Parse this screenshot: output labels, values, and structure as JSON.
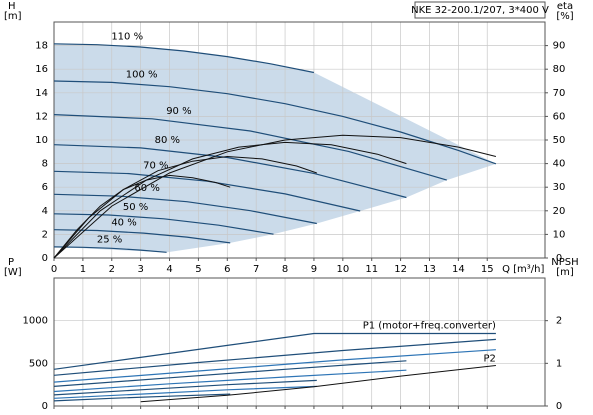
{
  "chart_data": [
    {
      "type": "line",
      "title": "NKE 32-200.1/207, 3*400 V",
      "ylabel": "H",
      "yunit": "[m]",
      "y2label": "eta",
      "y2unit": "[%]",
      "xlabel": "Q [m³/h]",
      "xlim": [
        0,
        17
      ],
      "xticks": [
        0,
        1,
        2,
        3,
        4,
        5,
        6,
        7,
        8,
        9,
        10,
        11,
        12,
        13,
        14,
        15
      ],
      "ylim": [
        0,
        20
      ],
      "yticks": [
        0,
        2,
        4,
        6,
        8,
        10,
        12,
        14,
        16,
        18
      ],
      "y2lim": [
        0,
        100
      ],
      "y2ticks": [
        0,
        10,
        20,
        30,
        40,
        50,
        60,
        70,
        80,
        90
      ],
      "grid": true,
      "fill_color": "#cbdbea",
      "series": [
        {
          "name": "110 %",
          "color": "#1f4e79",
          "x": [
            0,
            1.5,
            3,
            4.5,
            6,
            7.5,
            9
          ],
          "values": [
            18.15,
            18.08,
            17.88,
            17.54,
            17.07,
            16.46,
            15.72
          ]
        },
        {
          "name": "100 %",
          "color": "#1f4e79",
          "x": [
            0,
            2,
            4,
            6,
            8,
            10,
            12,
            14,
            15.3
          ],
          "values": [
            15,
            14.88,
            14.52,
            13.92,
            13.08,
            12,
            10.68,
            9.12,
            7.98
          ]
        },
        {
          "name": "90 %",
          "color": "#1f4e79",
          "x": [
            0,
            3.4,
            6.8,
            10.2,
            13.6
          ],
          "values": [
            12.15,
            11.8,
            10.76,
            9.03,
            6.6
          ]
        },
        {
          "name": "80 %",
          "color": "#1f4e79",
          "x": [
            0,
            3,
            6,
            9,
            12.2
          ],
          "values": [
            9.6,
            9.33,
            8.52,
            7.17,
            5.13
          ]
        },
        {
          "name": "70 %",
          "color": "#1f4e79",
          "x": [
            0,
            2.6,
            5.3,
            8,
            10.6
          ],
          "values": [
            7.35,
            7.15,
            6.51,
            5.43,
            3.98
          ]
        },
        {
          "name": "60 %",
          "color": "#1f4e79",
          "x": [
            0,
            2.3,
            4.6,
            6.8,
            9.1
          ],
          "values": [
            5.4,
            5.24,
            4.77,
            4.01,
            2.92
          ]
        },
        {
          "name": "50 %",
          "color": "#1f4e79",
          "x": [
            0,
            1.9,
            3.8,
            5.7,
            7.6
          ],
          "values": [
            3.75,
            3.64,
            3.32,
            2.78,
            2.02
          ]
        },
        {
          "name": "40 %",
          "color": "#1f4e79",
          "x": [
            0,
            1.5,
            3.1,
            4.6,
            6.1
          ],
          "values": [
            2.4,
            2.33,
            2.11,
            1.77,
            1.28
          ]
        },
        {
          "name": "25 %",
          "color": "#1f4e79",
          "x": [
            0,
            1,
            2,
            3,
            3.9
          ],
          "values": [
            0.94,
            0.91,
            0.82,
            0.67,
            0.48
          ]
        },
        {
          "axis": "y2",
          "color": "#111111",
          "x": [
            0,
            2,
            4,
            6,
            8,
            10,
            12,
            14,
            15.3
          ],
          "values": [
            0,
            22,
            36,
            45,
            50,
            52,
            51,
            47,
            43
          ]
        },
        {
          "axis": "y2",
          "color": "#111111",
          "x": [
            0,
            1.6,
            3.2,
            4.8,
            6.4,
            8,
            9.6,
            11.2,
            12.2
          ],
          "values": [
            0,
            20,
            33,
            42,
            47,
            49,
            48,
            44,
            40
          ]
        },
        {
          "axis": "y2",
          "color": "#111111",
          "x": [
            0,
            1.2,
            2.4,
            3.6,
            4.8,
            6,
            7.2,
            8.4,
            9.1
          ],
          "values": [
            0,
            17,
            29,
            37,
            41,
            43,
            42,
            39,
            36
          ]
        },
        {
          "axis": "y2",
          "color": "#111111",
          "x": [
            0,
            0.8,
            1.6,
            2.4,
            3.2,
            4,
            4.8,
            5.6,
            6.1
          ],
          "values": [
            0,
            12,
            22,
            29,
            33,
            35,
            34,
            32,
            30
          ]
        }
      ]
    },
    {
      "type": "line",
      "ylabel": "P",
      "yunit": "[W]",
      "y2label": "NPSH",
      "y2unit": "[m]",
      "xlim": [
        0,
        17
      ],
      "xticks": [
        0,
        1,
        2,
        3,
        4,
        5,
        6,
        7,
        8,
        9,
        10,
        11,
        12,
        13,
        14,
        15
      ],
      "ylim": [
        0,
        1500
      ],
      "yticks": [
        0,
        500,
        1000
      ],
      "y2lim": [
        0,
        3
      ],
      "y2ticks": [
        0,
        1,
        2
      ],
      "grid": true,
      "series": [
        {
          "name": "P1 (motor+freq.converter)",
          "color": "#1f4e79",
          "curves": [
            {
              "x": [
                0,
                3,
                6,
                9,
                12,
                15.3
              ],
              "values": [
                430,
                570,
                710,
                850,
                850,
                850
              ]
            },
            {
              "x": [
                0,
                5,
                10,
                15.3
              ],
              "values": [
                360,
                510,
                650,
                780
              ]
            },
            {
              "x": [
                0,
                4,
                8,
                12.2
              ],
              "values": [
                230,
                330,
                430,
                530
              ]
            },
            {
              "x": [
                0,
                3,
                6,
                9.1
              ],
              "values": [
                130,
                190,
                250,
                300
              ]
            },
            {
              "x": [
                0,
                2,
                4,
                6.1
              ],
              "values": [
                60,
                90,
                115,
                140
              ]
            }
          ]
        },
        {
          "name": "P2",
          "color": "#2e75b6",
          "curves": [
            {
              "x": [
                0,
                5,
                10,
                15.3
              ],
              "values": [
                280,
                410,
                540,
                660
              ]
            },
            {
              "x": [
                0,
                4,
                8,
                12.2
              ],
              "values": [
                170,
                260,
                340,
                420
              ]
            },
            {
              "x": [
                0,
                3,
                6,
                9.1
              ],
              "values": [
                90,
                140,
                190,
                230
              ]
            }
          ]
        },
        {
          "axis": "y2",
          "color": "#111111",
          "curves": [
            {
              "x": [
                3,
                6,
                9,
                12,
                15.3
              ],
              "values": [
                0.1,
                0.25,
                0.45,
                0.7,
                0.95
              ]
            }
          ]
        }
      ]
    }
  ]
}
